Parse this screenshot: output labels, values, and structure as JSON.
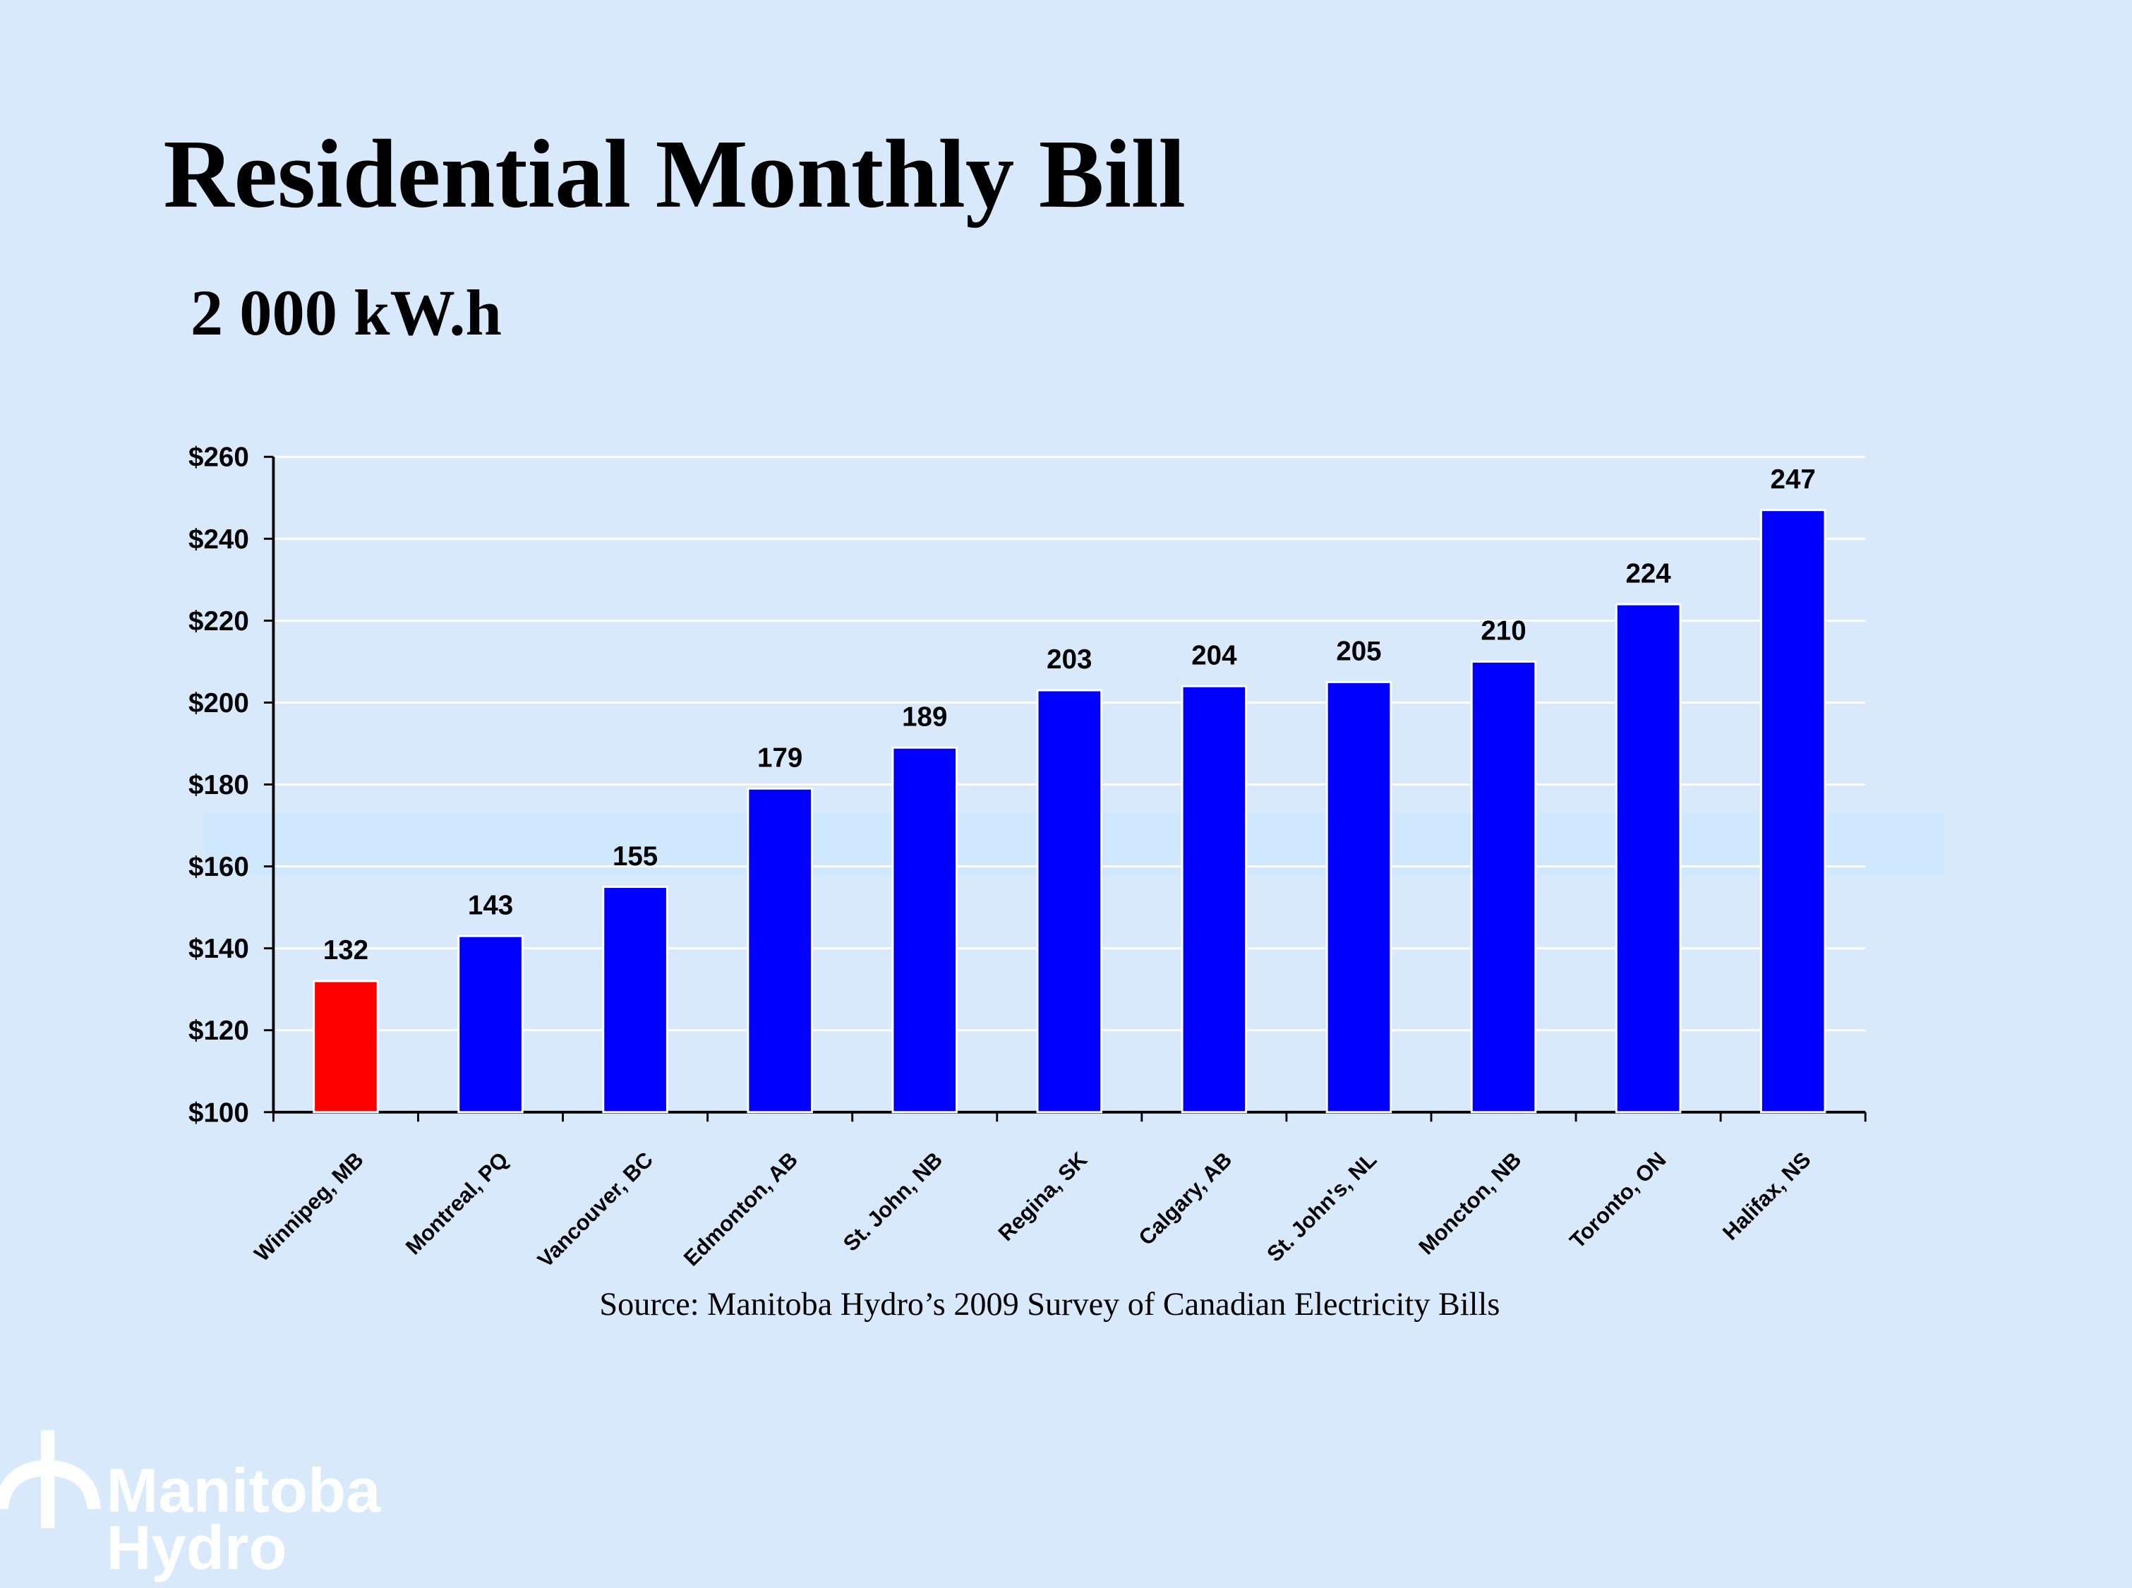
{
  "chart_data": {
    "type": "bar",
    "title": "Residential Monthly Bill",
    "subtitle": "2 000 kW.h",
    "source": "Source: Manitoba Hydro’s 2009  Survey of Canadian Electricity Bills",
    "categories": [
      "Winnipeg, MB",
      "Montreal, PQ",
      "Vancouver, BC",
      "Edmonton, AB",
      "St. John, NB",
      "Regina, SK",
      "Calgary, AB",
      "St. John's, NL",
      "Moncton, NB",
      "Toronto, ON",
      "Halifax, NS"
    ],
    "values": [
      132,
      143,
      155,
      179,
      189,
      203,
      204,
      205,
      210,
      224,
      247
    ],
    "colors": [
      "#ff0000",
      "#0000ff",
      "#0000ff",
      "#0000ff",
      "#0000ff",
      "#0000ff",
      "#0000ff",
      "#0000ff",
      "#0000ff",
      "#0000ff",
      "#0000ff"
    ],
    "ylim": [
      100,
      260
    ],
    "yticks": [
      {
        "value": 100,
        "label": "$100"
      },
      {
        "value": 120,
        "label": "$120"
      },
      {
        "value": 140,
        "label": "$140"
      },
      {
        "value": 160,
        "label": "$160"
      },
      {
        "value": 180,
        "label": "$180"
      },
      {
        "value": 200,
        "label": "$200"
      },
      {
        "value": 220,
        "label": "$220"
      },
      {
        "value": 240,
        "label": "$240"
      },
      {
        "value": 260,
        "label": "$260"
      }
    ],
    "grid": true
  },
  "logo": {
    "line1": "Manitoba",
    "line2": "Hydro"
  }
}
